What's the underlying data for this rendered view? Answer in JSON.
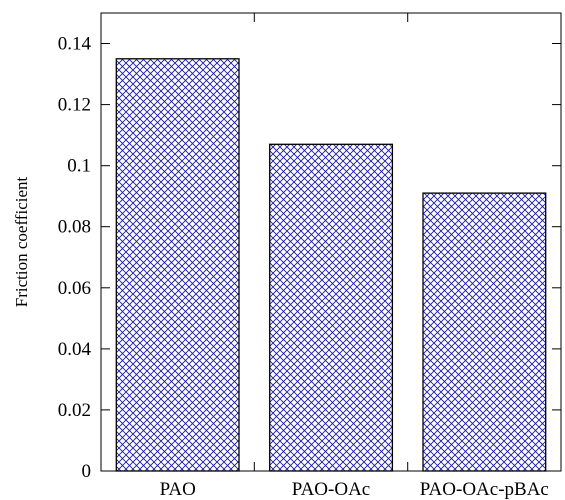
{
  "chart_data": {
    "type": "bar",
    "categories": [
      "PAO",
      "PAO-OAc",
      "PAO-OAc-pBAc"
    ],
    "values": [
      0.135,
      0.107,
      0.091
    ],
    "xlabel": "",
    "ylabel": "Friction coefficient",
    "ylim": [
      0,
      0.15
    ],
    "yticks": [
      0,
      0.02,
      0.04,
      0.06,
      0.08,
      0.1,
      0.12,
      0.14
    ],
    "ytick_labels": [
      "0",
      "0.02",
      "0.04",
      "0.06",
      "0.08",
      "0.1",
      "0.12",
      "0.14"
    ],
    "grid": false,
    "legend": "none",
    "bar_fill": "crosshatch",
    "colors": {
      "hatch": "#1a1aa8",
      "bar_edge": "#000000",
      "axis": "#000000"
    }
  }
}
